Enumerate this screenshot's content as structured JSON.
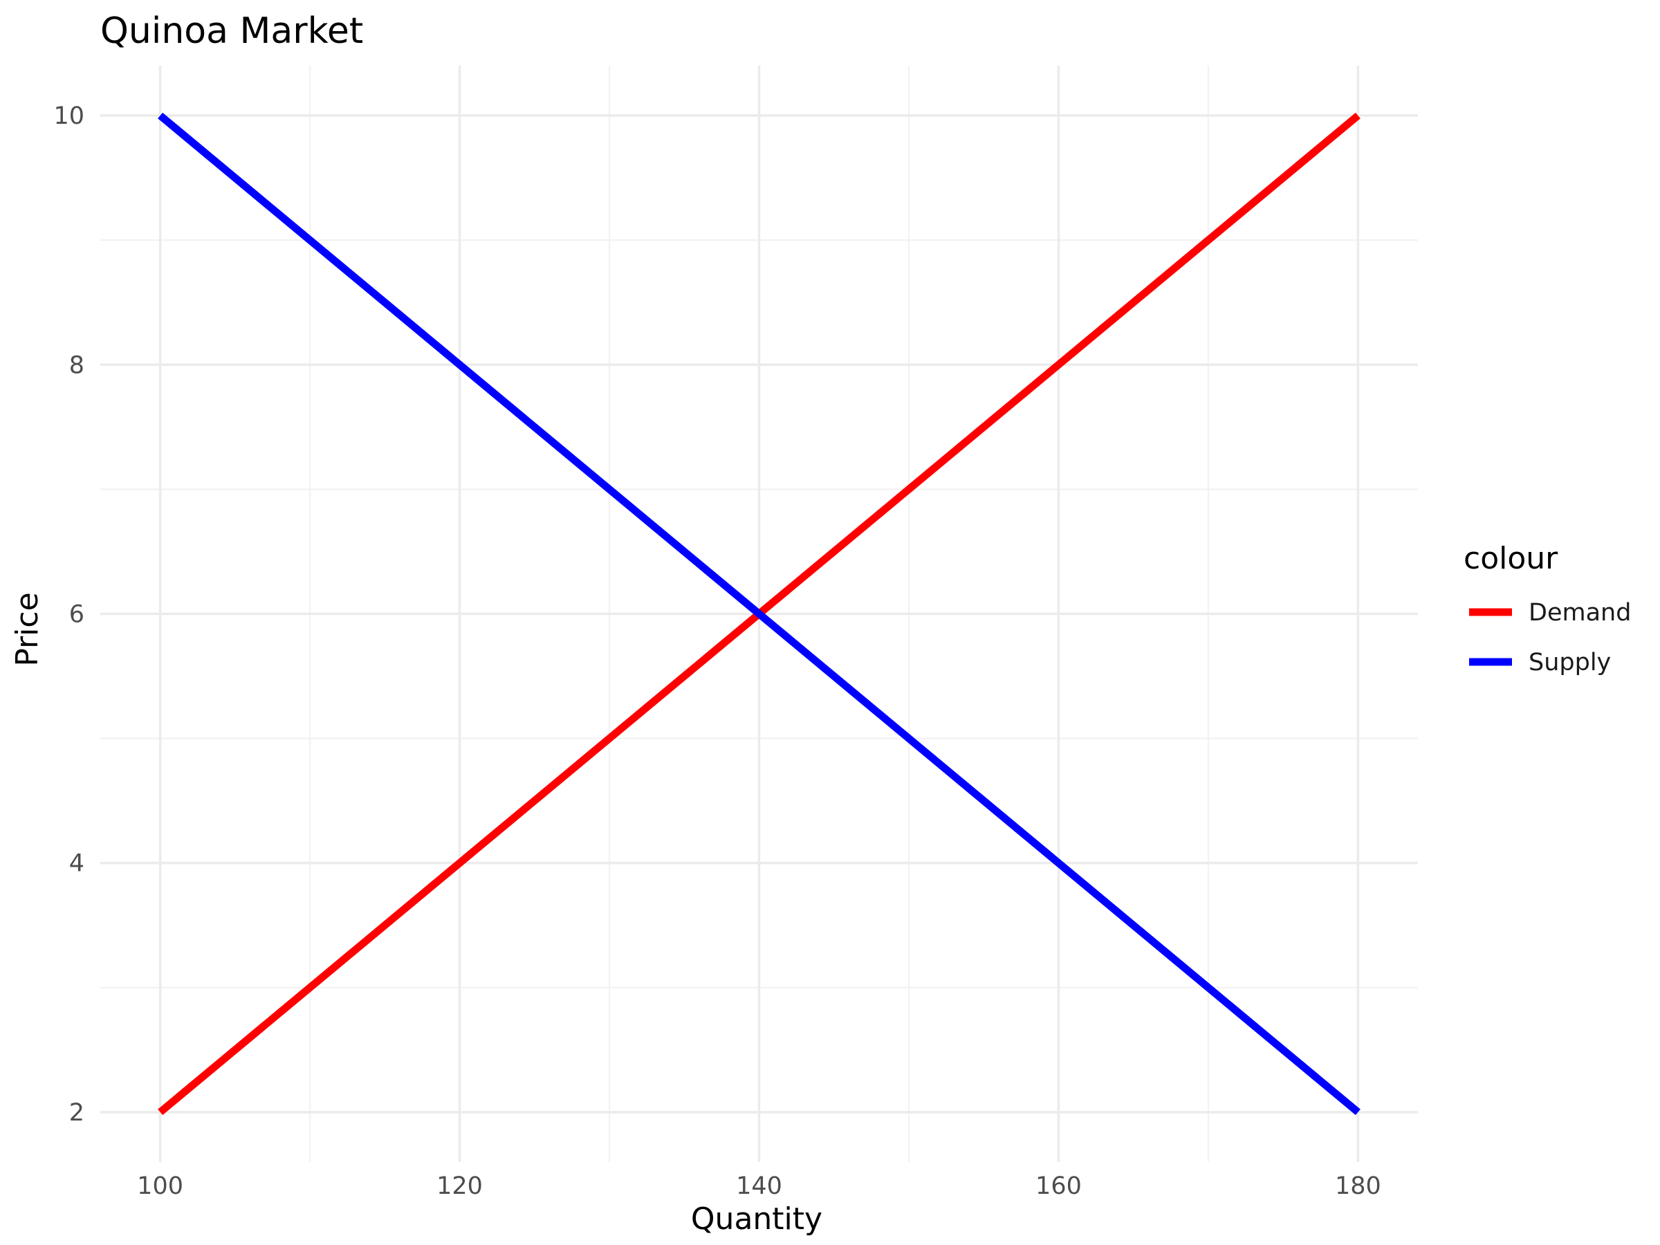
{
  "chart_data": {
    "type": "line",
    "title": "Quinoa Market",
    "xlabel": "Quantity",
    "ylabel": "Price",
    "xlim": [
      96,
      184
    ],
    "ylim": [
      1.6,
      10.4
    ],
    "x_ticks": [
      100,
      120,
      140,
      160,
      180
    ],
    "y_ticks": [
      2,
      4,
      6,
      8,
      10
    ],
    "x_minor": [
      110,
      130,
      150,
      170
    ],
    "y_minor": [
      3,
      5,
      7,
      9
    ],
    "grid": true,
    "legend": {
      "title": "colour",
      "position": "right"
    },
    "series": [
      {
        "name": "Demand",
        "color": "#ff0000",
        "x": [
          100,
          180
        ],
        "y": [
          2,
          10
        ]
      },
      {
        "name": "Supply",
        "color": "#0000ff",
        "x": [
          100,
          180
        ],
        "y": [
          10,
          2
        ]
      }
    ]
  }
}
